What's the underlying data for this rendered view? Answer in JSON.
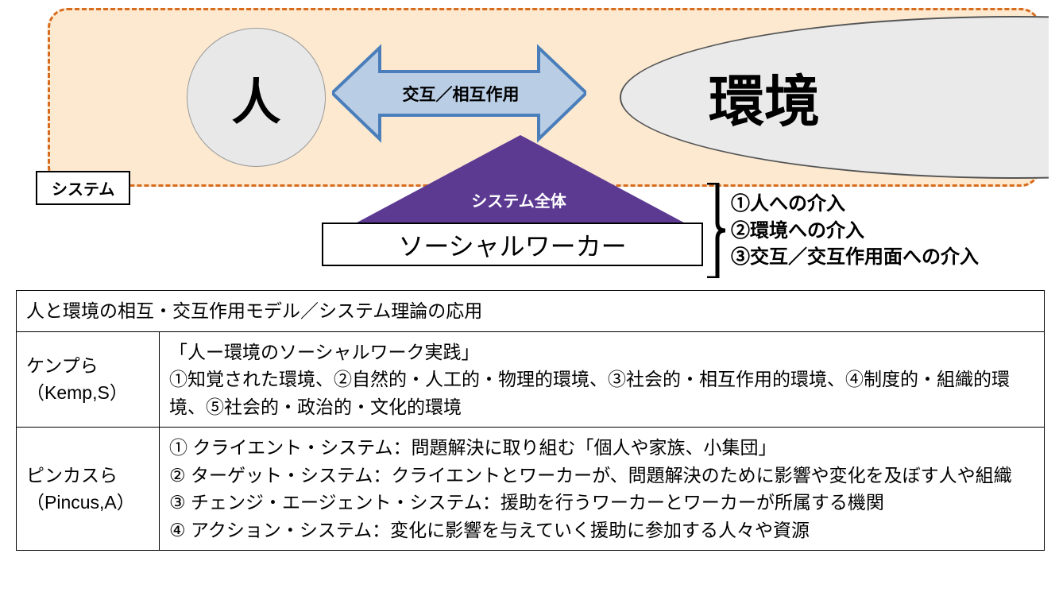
{
  "diagram": {
    "system_bg_color": "#fce9d0",
    "system_border_color": "#d86c1e",
    "system_tag": "システム",
    "person_label": "人",
    "person_bg": "#e8e8e8",
    "env_label": "環境",
    "env_bg": "#eaeaea",
    "bidir_arrow_fill": "#b9cde5",
    "bidir_arrow_stroke": "#4a7ebb",
    "bidir_label": "交互／相互作用",
    "up_arrow_fill": "#5c3a92",
    "up_arrow_label": "システム全体",
    "sw_label": "ソーシャルワーカー",
    "interventions": [
      "①人への介入",
      "②環境への介入",
      "③交互／交互作用面への介入"
    ]
  },
  "table": {
    "header": "人と環境の相互・交互作用モデル／システム理論の応用",
    "rows": [
      {
        "author": "ケンプら\n（Kemp,S）",
        "content": "「人ー環境のソーシャルワーク実践」\n①知覚された環境、②自然的・人工的・物理的環境、③社会的・相互作用的環境、④制度的・組織的環境、⑤社会的・政治的・文化的環境"
      },
      {
        "author": "ピンカスら\n（Pincus,A）",
        "content": "① クライエント・システム：問題解決に取り組む「個人や家族、小集団」\n② ターゲット・システム：クライエントとワーカーが、問題解決のために影響や変化を及ぼす人や組織\n③ チェンジ・エージェント・システム：援助を行うワーカーとワーカーが所属する機関\n④ アクション・システム：変化に影響を与えていく援助に参加する人々や資源"
      }
    ]
  }
}
